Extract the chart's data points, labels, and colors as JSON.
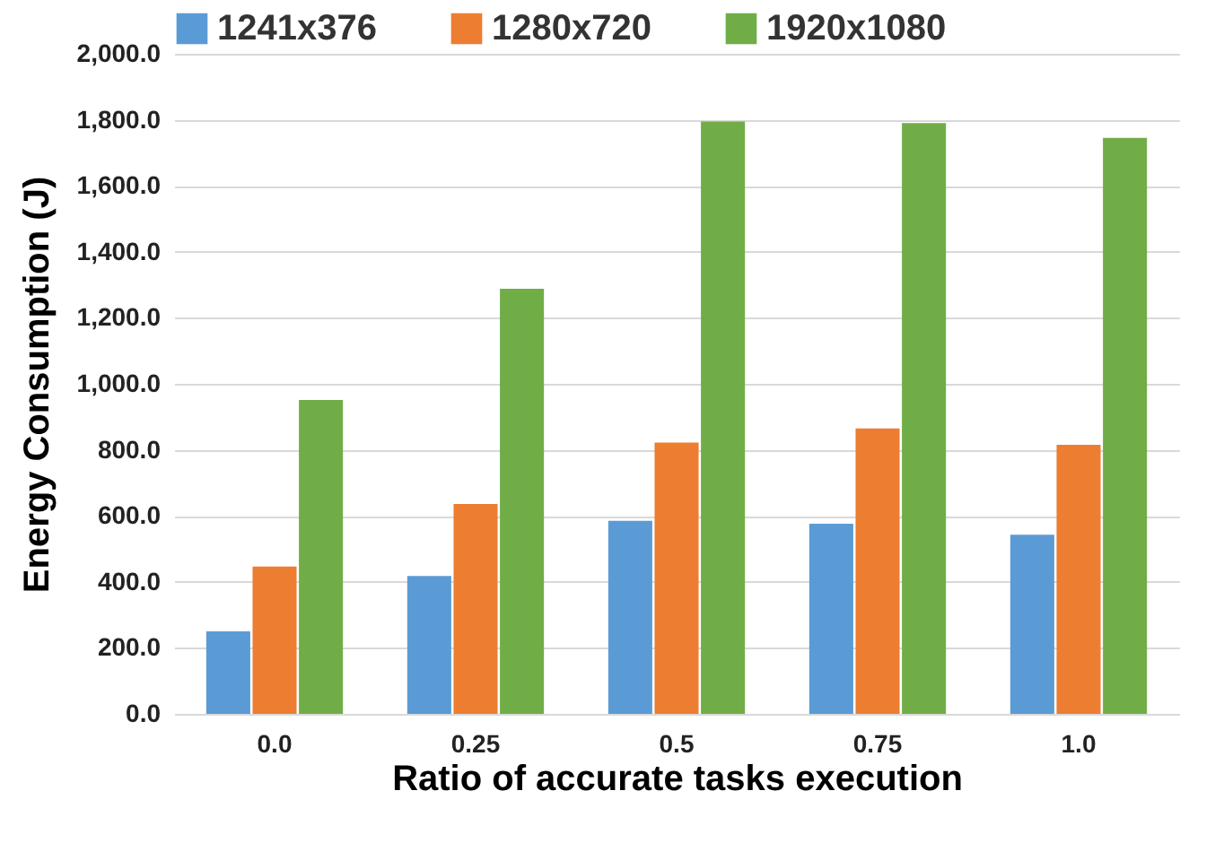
{
  "chart_data": {
    "type": "bar",
    "xlabel": "Ratio of accurate tasks execution",
    "ylabel": "Energy Consumption (J)",
    "categories": [
      "0.0",
      "0.25",
      "0.5",
      "0.75",
      "1.0"
    ],
    "series": [
      {
        "name": "1241x376",
        "color": "#5b9bd5",
        "values": [
          250,
          418,
          585,
          576,
          543
        ]
      },
      {
        "name": "1280x720",
        "color": "#ed7d31",
        "values": [
          446,
          636,
          822,
          865,
          815
        ]
      },
      {
        "name": "1920x1080",
        "color": "#70ad47",
        "values": [
          951,
          1288,
          1795,
          1790,
          1745
        ]
      }
    ],
    "ylim": [
      0,
      2000
    ],
    "yticks": [
      {
        "value": 0,
        "label": "0.0"
      },
      {
        "value": 200,
        "label": "200.0"
      },
      {
        "value": 400,
        "label": "400.0"
      },
      {
        "value": 600,
        "label": "600.0"
      },
      {
        "value": 800,
        "label": "800.0"
      },
      {
        "value": 1000,
        "label": "1,000.0"
      },
      {
        "value": 1200,
        "label": "1,200.0"
      },
      {
        "value": 1400,
        "label": "1,400.0"
      },
      {
        "value": 1600,
        "label": "1,600.0"
      },
      {
        "value": 1800,
        "label": "1,800.0"
      },
      {
        "value": 2000,
        "label": "2,000.0"
      }
    ],
    "grid": "y",
    "legend": "top"
  }
}
